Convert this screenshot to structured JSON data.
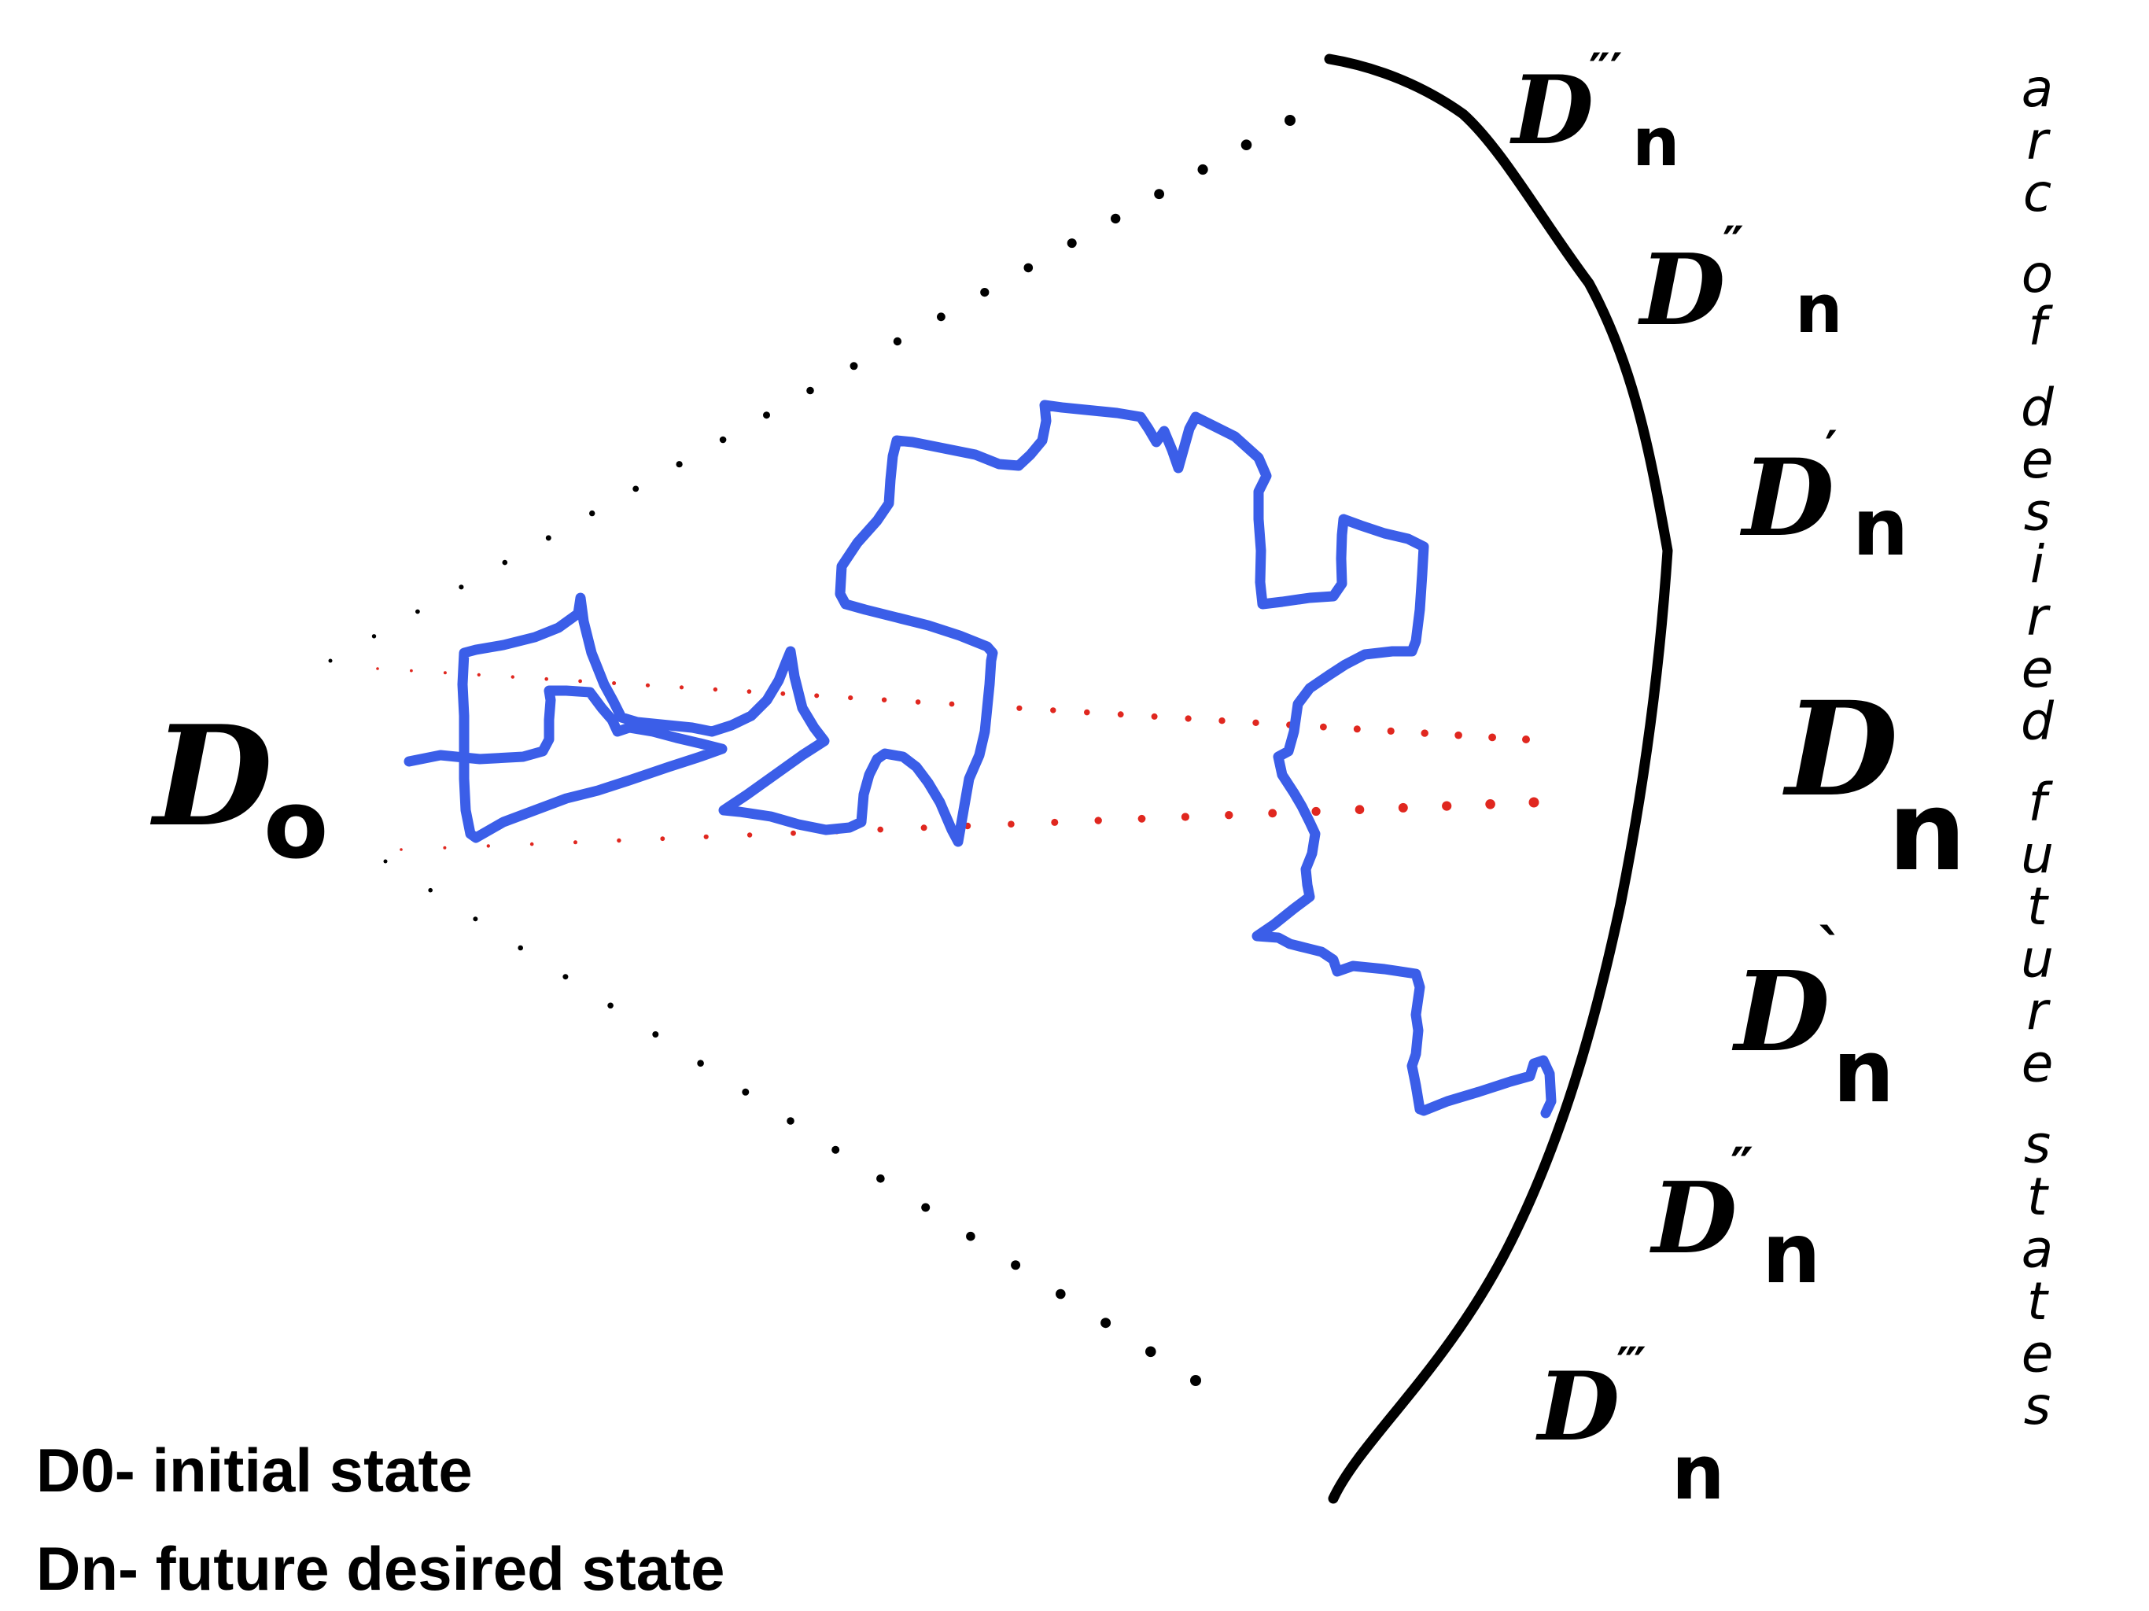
{
  "diagram": {
    "initial_state": {
      "base": "D",
      "sub": "o"
    },
    "future_states": [
      {
        "base": "D",
        "sub": "n",
        "prime": "″′"
      },
      {
        "base": "D",
        "sub": "n",
        "prime": "″"
      },
      {
        "base": "D",
        "sub": "n",
        "prime": "′"
      },
      {
        "base": "D",
        "sub": "n",
        "prime": ""
      },
      {
        "base": "D",
        "sub": "n",
        "prime": "`"
      },
      {
        "base": "D",
        "sub": "n",
        "prime": "″"
      },
      {
        "base": "D",
        "sub": "n",
        "prime": "‴"
      }
    ],
    "arc_label": "arc of desired future states",
    "colors": {
      "path": "#3b5ee8",
      "arc": "#000000",
      "cone_dots": "#000000",
      "center_dots": "#e0271f",
      "text": "#000000"
    }
  },
  "legend": {
    "d0": "D0- initial state",
    "dn": "Dn- future desired state"
  }
}
